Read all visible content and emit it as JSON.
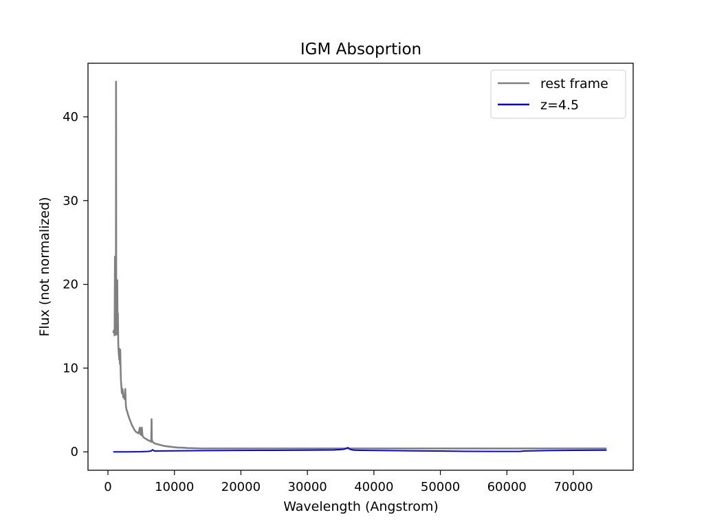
{
  "chart_data": {
    "type": "line",
    "title": "IGM Absoprtion",
    "xlabel": "Wavelength (Angstrom)",
    "ylabel": "Flux (not normalized)",
    "xlim": [
      -3000,
      79000
    ],
    "ylim": [
      -2.2,
      46.4
    ],
    "xticks": [
      0,
      10000,
      20000,
      30000,
      40000,
      50000,
      60000,
      70000
    ],
    "yticks": [
      0,
      10,
      20,
      30,
      40
    ],
    "grid": false,
    "legend_position": "top-right",
    "series": [
      {
        "name": "rest frame",
        "color": "#808080",
        "x": [
          800,
          900,
          1000,
          1050,
          1100,
          1150,
          1200,
          1216,
          1230,
          1250,
          1280,
          1300,
          1350,
          1400,
          1450,
          1500,
          1550,
          1600,
          1650,
          1700,
          1750,
          1800,
          1850,
          1900,
          1950,
          2000,
          2100,
          2200,
          2300,
          2400,
          2500,
          2600,
          2700,
          2800,
          2900,
          3000,
          3200,
          3400,
          3600,
          3800,
          4000,
          4200,
          4400,
          4600,
          4800,
          4900,
          5000,
          5100,
          5200,
          5400,
          5600,
          5800,
          6000,
          6300,
          6500,
          6563,
          6600,
          6700,
          7000,
          7500,
          8000,
          8500,
          9000,
          9500,
          10000,
          10500,
          11000,
          12000,
          14000,
          16000,
          18000,
          20000,
          25000,
          30000,
          35000,
          40000,
          45000,
          50000,
          55000,
          60000,
          65000,
          70000,
          75000
        ],
        "y": [
          14.2,
          14.5,
          13.9,
          23.3,
          14.0,
          18.5,
          15.0,
          44.2,
          38.0,
          16.0,
          18.0,
          14.5,
          14.0,
          20.5,
          15.5,
          16.5,
          13.0,
          12.0,
          11.5,
          11.0,
          12.3,
          10.5,
          12.2,
          10.0,
          8.5,
          8.0,
          7.0,
          7.5,
          6.5,
          6.8,
          6.3,
          7.5,
          5.5,
          5.0,
          4.8,
          4.5,
          4.0,
          3.6,
          3.2,
          2.9,
          2.6,
          2.4,
          2.3,
          2.2,
          2.9,
          2.1,
          2.0,
          2.9,
          1.9,
          1.7,
          1.6,
          1.5,
          1.4,
          1.3,
          1.2,
          3.9,
          1.5,
          1.2,
          1.0,
          0.9,
          0.8,
          0.7,
          0.65,
          0.6,
          0.55,
          0.5,
          0.5,
          0.45,
          0.4,
          0.4,
          0.4,
          0.4,
          0.4,
          0.4,
          0.4,
          0.4,
          0.4,
          0.4,
          0.4,
          0.4,
          0.4,
          0.4,
          0.4
        ]
      },
      {
        "name": "z=4.5",
        "color": "#0000ff",
        "x": [
          800,
          3000,
          5000,
          6000,
          6500,
          6700,
          7000,
          10000,
          15000,
          20000,
          25000,
          30000,
          34000,
          35500,
          36100,
          36400,
          37000,
          38000,
          42000,
          46000,
          50000,
          54000,
          58000,
          62000,
          62500,
          66000,
          70000,
          75000
        ],
        "y": [
          0.0,
          0.0,
          0.02,
          0.05,
          0.1,
          0.25,
          0.1,
          0.12,
          0.15,
          0.17,
          0.18,
          0.2,
          0.22,
          0.3,
          0.5,
          0.3,
          0.2,
          0.18,
          0.15,
          0.12,
          0.1,
          0.06,
          0.05,
          0.05,
          0.1,
          0.15,
          0.18,
          0.2
        ]
      }
    ]
  }
}
